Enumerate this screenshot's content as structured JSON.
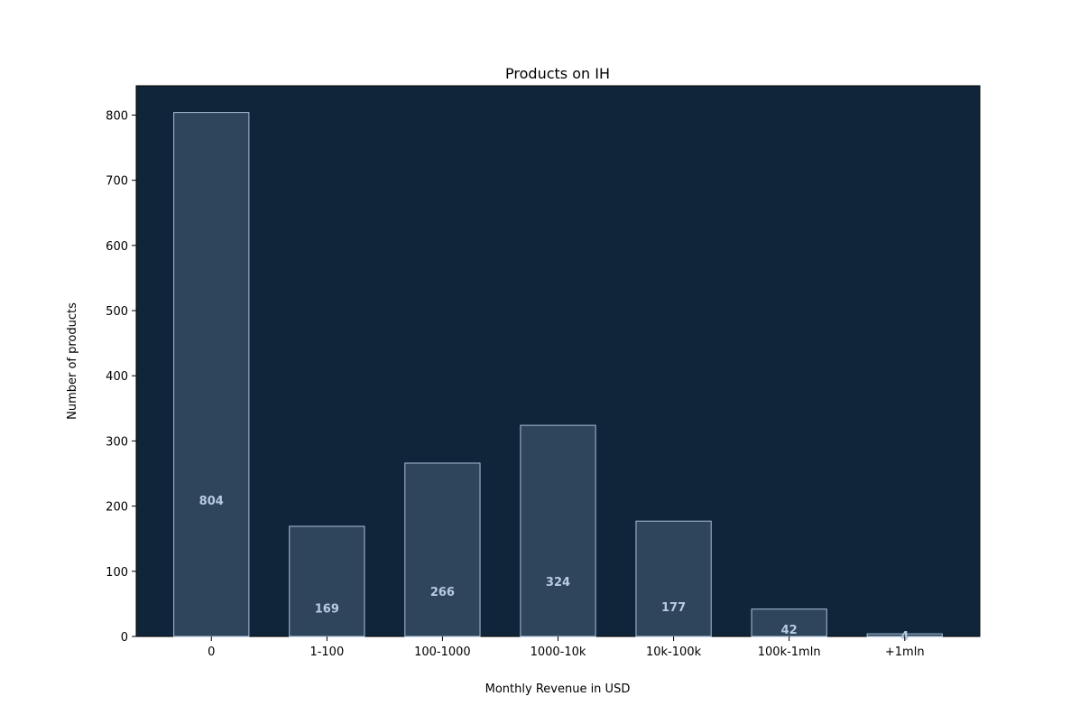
{
  "chart_data": {
    "type": "bar",
    "title": "Products on IH",
    "xlabel": "Monthly Revenue in USD",
    "ylabel": "Number of products",
    "categories": [
      "0",
      "1-100",
      "100-1000",
      "1000-10k",
      "10k-100k",
      "100k-1mln",
      "+1mln"
    ],
    "values": [
      804,
      169,
      266,
      324,
      177,
      42,
      4
    ],
    "ylim": [
      0,
      845
    ],
    "yticks": [
      0,
      100,
      200,
      300,
      400,
      500,
      600,
      700,
      800
    ],
    "grid": false,
    "legend": "none",
    "colors": {
      "plot_background": "#10253a",
      "bar_fill": "#2e455c",
      "bar_edge": "#a9c1d8",
      "bar_label": "#b8cbe0"
    }
  }
}
